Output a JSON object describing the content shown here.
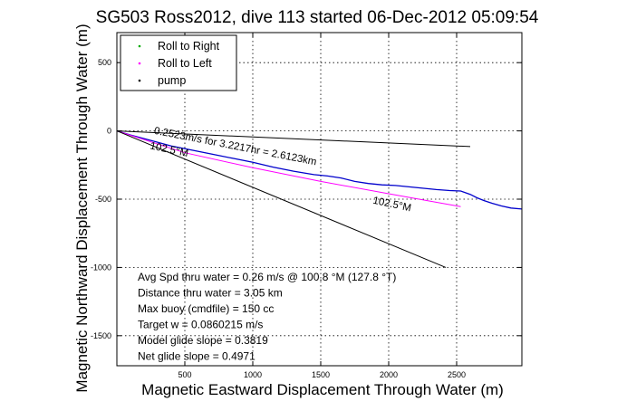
{
  "chart_data": {
    "type": "line",
    "title": "SG503 Ross2012, dive 113 started 06-Dec-2012 05:09:54",
    "xlabel": "Magnetic Eastward Displacement Through Water (m)",
    "ylabel": "Magnetic Northward Displacement Through Water (m)",
    "xlim": [
      0,
      2980
    ],
    "ylim": [
      -1720,
      720
    ],
    "x_ticks": [
      500,
      1000,
      1500,
      2000,
      2500
    ],
    "y_ticks": [
      500,
      0,
      -500,
      -1000,
      -1500
    ],
    "grid": true,
    "legend_position": "top-left",
    "legend": [
      {
        "label": "Roll to Right",
        "color": "#00aa00",
        "marker": "dot"
      },
      {
        "label": "Roll to Left",
        "color": "#ff00ff",
        "marker": "dot"
      },
      {
        "label": "pump",
        "color": "#000000",
        "marker": "dot"
      }
    ],
    "series": [
      {
        "color": "#0000cc",
        "points": [
          [
            0,
            0
          ],
          [
            100,
            -30
          ],
          [
            250,
            -70
          ],
          [
            400,
            -110
          ],
          [
            550,
            -140
          ],
          [
            700,
            -170
          ],
          [
            850,
            -200
          ],
          [
            1000,
            -230
          ],
          [
            1150,
            -265
          ],
          [
            1300,
            -295
          ],
          [
            1450,
            -320
          ],
          [
            1550,
            -330
          ],
          [
            1650,
            -345
          ],
          [
            1750,
            -370
          ],
          [
            1850,
            -385
          ],
          [
            1950,
            -395
          ],
          [
            2050,
            -400
          ],
          [
            2150,
            -410
          ],
          [
            2250,
            -420
          ],
          [
            2350,
            -430
          ],
          [
            2450,
            -437
          ],
          [
            2530,
            -440
          ],
          [
            2600,
            -465
          ],
          [
            2650,
            -490
          ],
          [
            2700,
            -510
          ],
          [
            2760,
            -530
          ],
          [
            2830,
            -550
          ],
          [
            2900,
            -565
          ],
          [
            2980,
            -572
          ]
        ]
      },
      {
        "color": "#ff00ff",
        "points": [
          [
            0,
            0
          ],
          [
            500,
            -160
          ],
          [
            1000,
            -270
          ],
          [
            1500,
            -370
          ],
          [
            2000,
            -460
          ],
          [
            2530,
            -555
          ]
        ]
      },
      {
        "color": "#000000",
        "points": [
          [
            0,
            0
          ],
          [
            2600,
            -115
          ]
        ]
      },
      {
        "color": "#000000",
        "points": [
          [
            0,
            0
          ],
          [
            2420,
            -1000
          ]
        ]
      }
    ],
    "annotations": [
      {
        "text": "0.2523m/s for 3.2217hr = 2.6123km",
        "x": 270,
        "y": -20,
        "rotate": 11
      },
      {
        "text": "102.5°M",
        "x": 240,
        "y": -130,
        "rotate": 12
      },
      {
        "text": "102.5°M",
        "x": 1880,
        "y": -530,
        "rotate": 12
      }
    ],
    "stats": [
      "Avg Spd thru water =  0.26 m/s @ 100.8  °M (127.8 °T)",
      "Distance thru water =  3.05 km",
      "Max buoy (cmdfile) = 150 cc",
      "Target w = 0.0860215 m/s",
      "Model glide slope = 0.3819",
      "Net glide slope = 0.4971"
    ]
  }
}
